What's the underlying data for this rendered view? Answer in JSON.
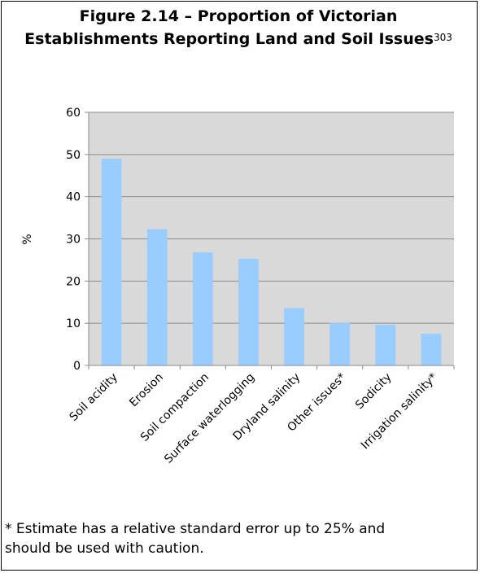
{
  "figure": {
    "title_line1": "Figure 2.14 – Proportion of Victorian",
    "title_line2": "Establishments Reporting Land and Soil Issues",
    "title_ref": "303",
    "footnote_line1": "* Estimate has a relative standard error up to 25% and",
    "footnote_line2": "should be used with caution."
  },
  "chart_data": {
    "type": "bar",
    "categories": [
      "Soil acidity",
      "Erosion",
      "Soil compaction",
      "Surface waterlogging",
      "Dryland salinity",
      "Other issues*",
      "Sodicity",
      "Irrigation salinity*"
    ],
    "values": [
      49,
      32.3,
      26.8,
      25.3,
      13.6,
      10.1,
      9.6,
      7.5
    ],
    "ylabel": "%",
    "ylim": [
      0,
      60
    ],
    "yticks": [
      0,
      10,
      20,
      30,
      40,
      50,
      60
    ],
    "grid": true,
    "colors": {
      "bar": "#99ccff",
      "plot_bg": "#d9d9d9",
      "grid": "#8c8c8c"
    }
  }
}
